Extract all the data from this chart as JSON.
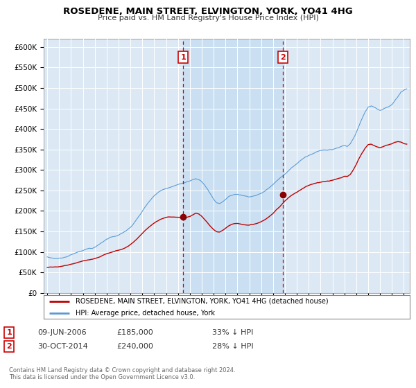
{
  "title": "ROSEDENE, MAIN STREET, ELVINGTON, YORK, YO41 4HG",
  "subtitle": "Price paid vs. HM Land Registry's House Price Index (HPI)",
  "background_color": "#ffffff",
  "plot_bg_color": "#dce9f5",
  "grid_color": "#ffffff",
  "hpi_color": "#5b9bd5",
  "price_color": "#c00000",
  "marker_color": "#8b0000",
  "vline_color": "#cc0000",
  "shade_color": "#c8dff2",
  "ylim": [
    0,
    620000
  ],
  "yticks": [
    0,
    50000,
    100000,
    150000,
    200000,
    250000,
    300000,
    350000,
    400000,
    450000,
    500000,
    550000,
    600000
  ],
  "ytick_labels": [
    "£0",
    "£50K",
    "£100K",
    "£150K",
    "£200K",
    "£250K",
    "£300K",
    "£350K",
    "£400K",
    "£450K",
    "£500K",
    "£550K",
    "£600K"
  ],
  "xlim_start": 1994.7,
  "xlim_end": 2025.5,
  "xticks": [
    1995,
    1996,
    1997,
    1998,
    1999,
    2000,
    2001,
    2002,
    2003,
    2004,
    2005,
    2006,
    2007,
    2008,
    2009,
    2010,
    2011,
    2012,
    2013,
    2014,
    2015,
    2016,
    2017,
    2018,
    2019,
    2020,
    2021,
    2022,
    2023,
    2024,
    2025
  ],
  "transaction1_x": 2006.44,
  "transaction1_y": 185000,
  "transaction1_label": "09-JUN-2006",
  "transaction1_price": "£185,000",
  "transaction1_pct": "33% ↓ HPI",
  "transaction2_x": 2014.83,
  "transaction2_y": 240000,
  "transaction2_label": "30-OCT-2014",
  "transaction2_price": "£240,000",
  "transaction2_pct": "28% ↓ HPI",
  "legend_line1": "ROSEDENE, MAIN STREET, ELVINGTON, YORK, YO41 4HG (detached house)",
  "legend_line2": "HPI: Average price, detached house, York",
  "footer1": "Contains HM Land Registry data © Crown copyright and database right 2024.",
  "footer2": "This data is licensed under the Open Government Licence v3.0."
}
